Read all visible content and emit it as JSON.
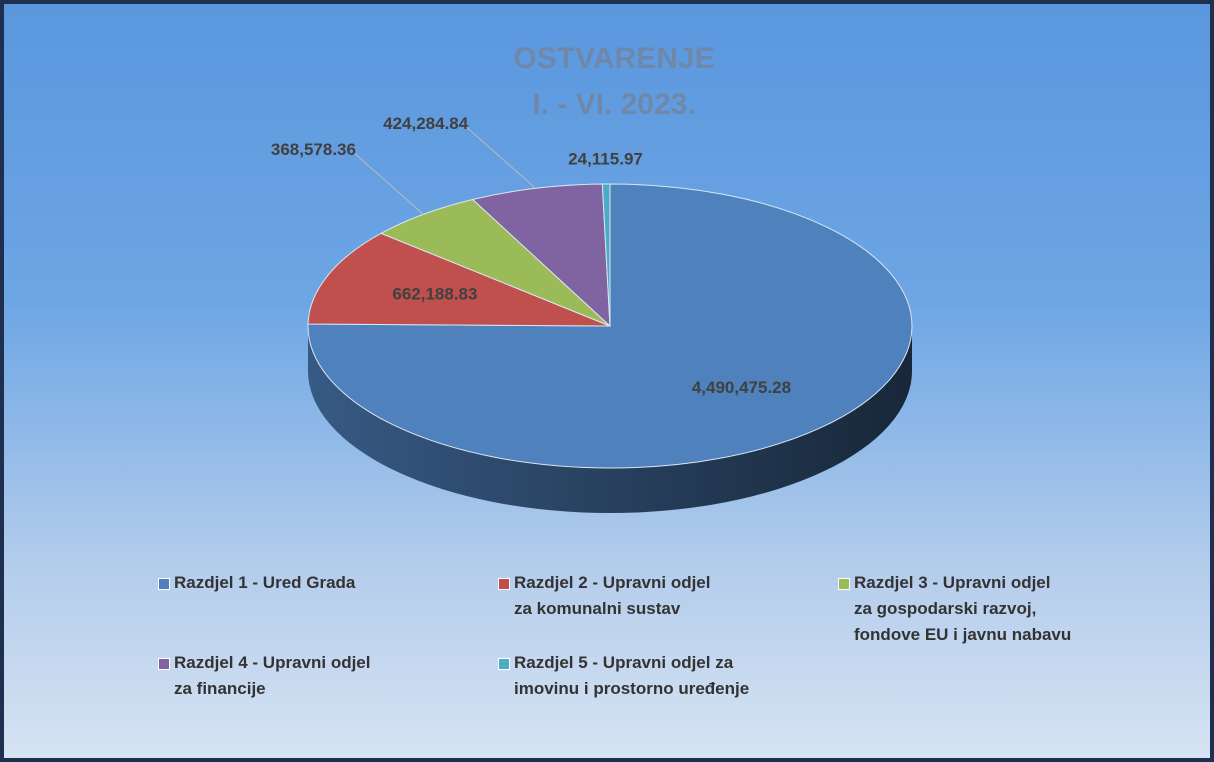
{
  "chart_data": {
    "type": "pie",
    "title": "OSTVARENJE\nI. - VI. 2023.",
    "categories": [
      "Razdjel 1 - Ured Grada",
      "Razdjel 2 - Upravni odjel\nza komunalni sustav",
      "Razdjel 3 - Upravni odjel\nza gospodarski razvoj,\nfondove EU i javnu nabavu",
      "Razdjel 4 - Upravni odjel\nza financije",
      "Razdjel 5 - Upravni odjel za\nimovinu i prostorno uređenje"
    ],
    "values": [
      4490475.28,
      662188.83,
      368578.36,
      424284.84,
      24115.97
    ],
    "value_labels": [
      "4,490,475.28",
      "662,188.83",
      "368,578.36",
      "424,284.84",
      "24,115.97"
    ],
    "colors": [
      "#4f81bd",
      "#c0504d",
      "#9bbb59",
      "#8064a2",
      "#4bacc6"
    ]
  }
}
